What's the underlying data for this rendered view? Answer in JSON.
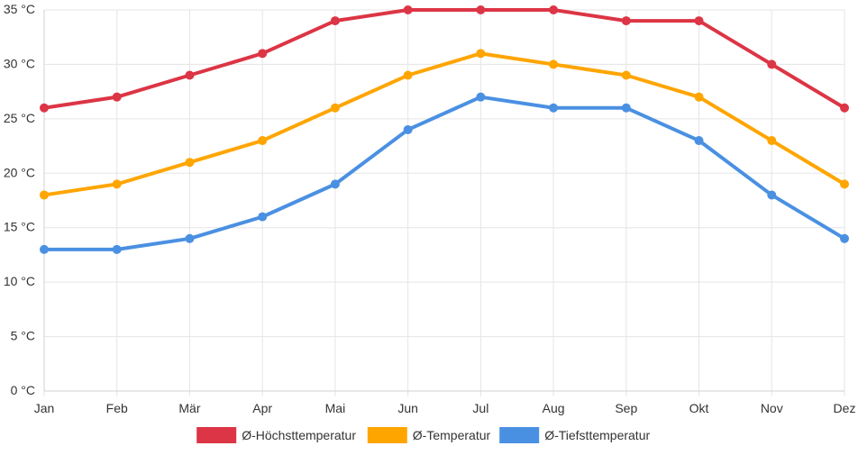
{
  "chart_data": {
    "type": "line",
    "categories": [
      "Jan",
      "Feb",
      "Mär",
      "Apr",
      "Mai",
      "Jun",
      "Jul",
      "Aug",
      "Sep",
      "Okt",
      "Nov",
      "Dez"
    ],
    "series": [
      {
        "name": "Ø-Höchsttemperatur",
        "color": "#dc3545",
        "values": [
          26,
          27,
          29,
          31,
          34,
          35,
          35,
          35,
          34,
          34,
          30,
          26
        ]
      },
      {
        "name": "Ø-Temperatur",
        "color": "#ffa500",
        "values": [
          18,
          19,
          21,
          23,
          26,
          29,
          31,
          30,
          29,
          27,
          23,
          19
        ]
      },
      {
        "name": "Ø-Tiefsttemperatur",
        "color": "#4a90e2",
        "values": [
          13,
          13,
          14,
          16,
          19,
          24,
          27,
          26,
          26,
          23,
          18,
          14
        ]
      }
    ],
    "yticks": [
      "0 °C",
      "5 °C",
      "10 °C",
      "15 °C",
      "20 °C",
      "25 °C",
      "30 °C",
      "35 °C"
    ],
    "ylim": [
      0,
      35
    ],
    "grid": true,
    "legend_position": "bottom"
  }
}
